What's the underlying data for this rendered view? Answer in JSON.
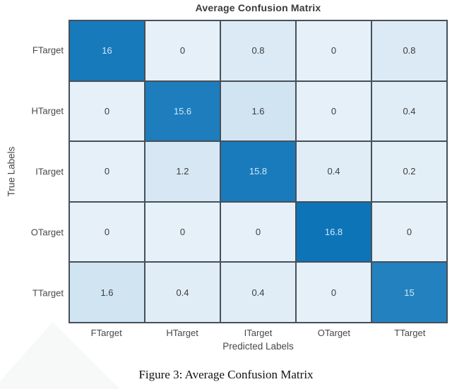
{
  "title": "Average Confusion Matrix",
  "caption": "Figure 3: Average Confusion Matrix",
  "chart_data": {
    "type": "heatmap",
    "title": "Average Confusion Matrix",
    "xlabel": "Predicted Labels",
    "ylabel": "True Labels",
    "x_categories": [
      "FTarget",
      "HTarget",
      "ITarget",
      "OTarget",
      "TTarget"
    ],
    "y_categories": [
      "FTarget",
      "HTarget",
      "ITarget",
      "OTarget",
      "TTarget"
    ],
    "rows": [
      [
        16,
        0,
        0.8,
        0,
        0.8
      ],
      [
        0,
        15.6,
        1.6,
        0,
        0.4
      ],
      [
        0,
        1.2,
        15.8,
        0.4,
        0.2
      ],
      [
        0,
        0,
        0,
        16.8,
        0
      ],
      [
        1.6,
        0.4,
        0.4,
        0,
        15
      ]
    ],
    "value_min": 0,
    "value_max": 16.8,
    "grid": true,
    "legend": "none",
    "colors": {
      "cell_low": "#e6f0f8",
      "cell_high": "#0d74b8",
      "grid_line": "#45505a",
      "text_on_light": "#3d3d3d",
      "text_on_dark": "#cfe9f7",
      "title_text": "#3b3b3b",
      "axis_text": "#474747"
    }
  }
}
